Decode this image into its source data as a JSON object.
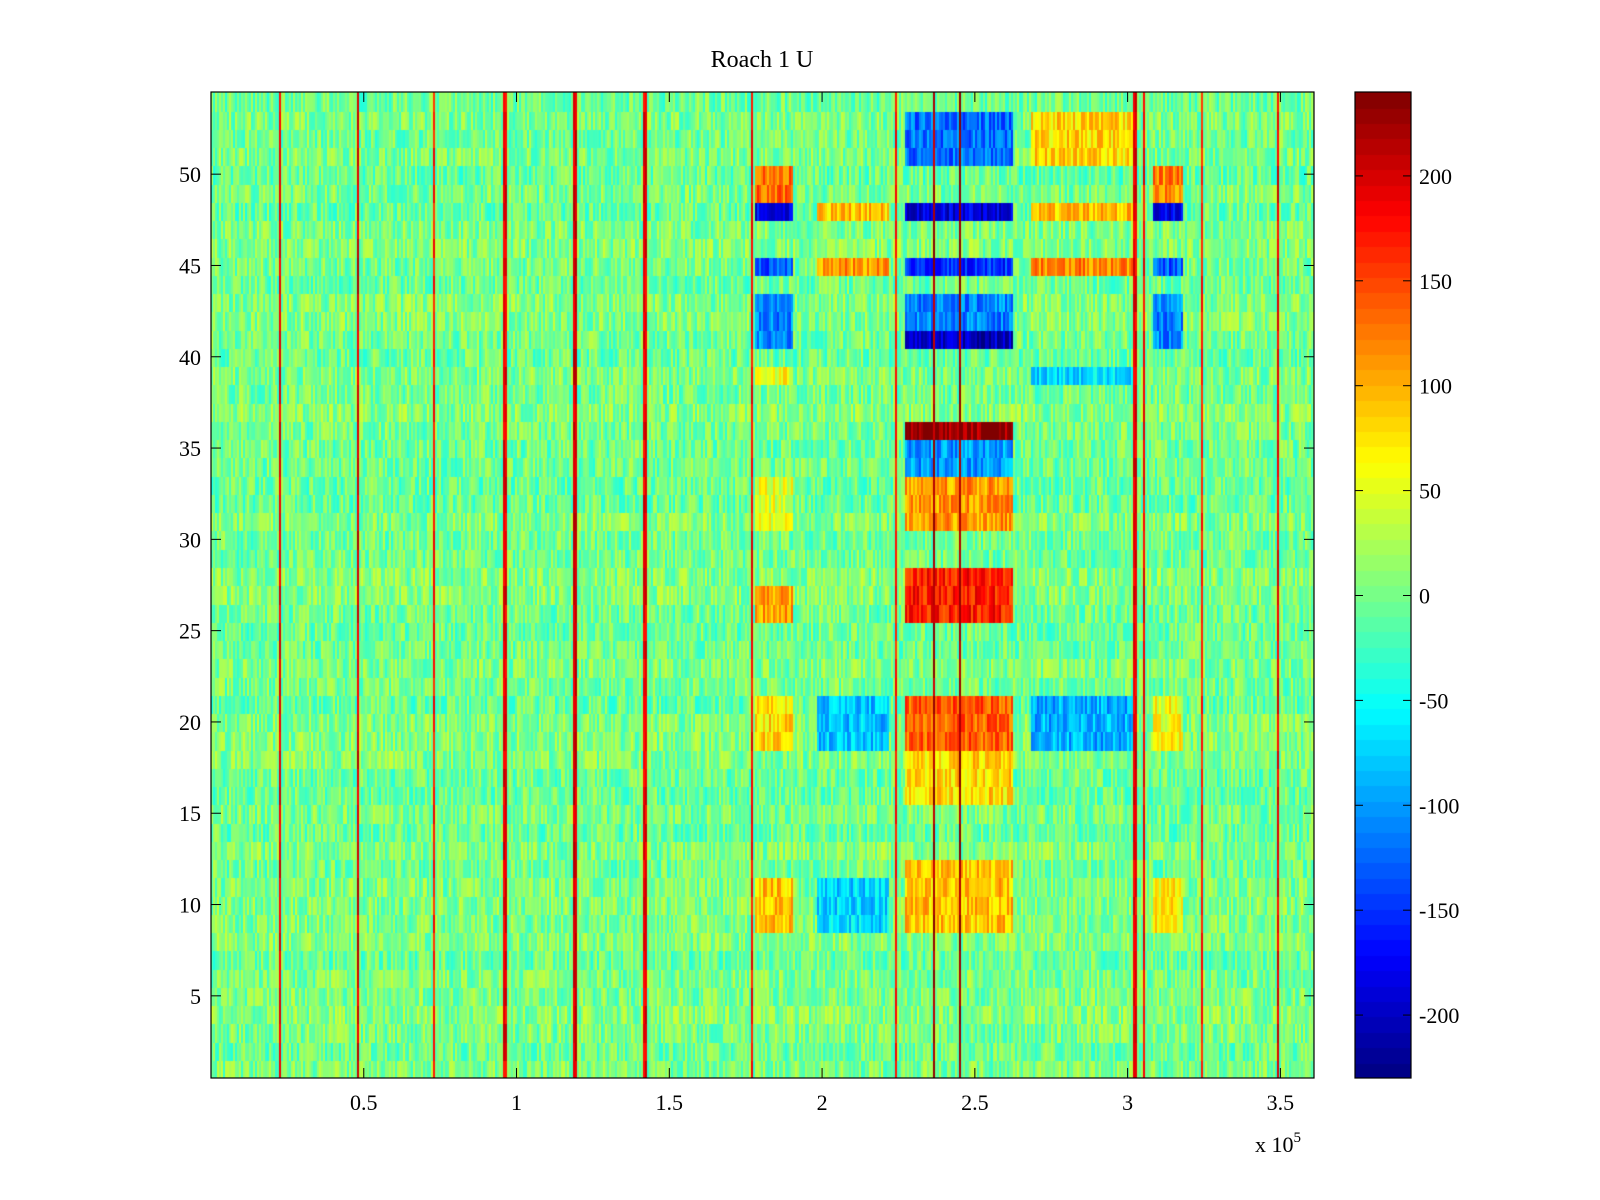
{
  "chart_data": {
    "type": "heatmap",
    "title": "Roach 1 U",
    "xlabel": "",
    "ylabel": "",
    "x_exponent_label": {
      "base": "x 10",
      "exponent": "5"
    },
    "xlim": [
      0,
      361000
    ],
    "ylim": [
      0.5,
      54.5
    ],
    "rows": 54,
    "x_ticks": [
      {
        "value": 50000,
        "label": "0.5"
      },
      {
        "value": 100000,
        "label": "1"
      },
      {
        "value": 150000,
        "label": "1.5"
      },
      {
        "value": 200000,
        "label": "2"
      },
      {
        "value": 250000,
        "label": "2.5"
      },
      {
        "value": 300000,
        "label": "3"
      },
      {
        "value": 350000,
        "label": "3.5"
      }
    ],
    "y_ticks": [
      {
        "value": 5,
        "label": "5"
      },
      {
        "value": 10,
        "label": "10"
      },
      {
        "value": 15,
        "label": "15"
      },
      {
        "value": 20,
        "label": "20"
      },
      {
        "value": 25,
        "label": "25"
      },
      {
        "value": 30,
        "label": "30"
      },
      {
        "value": 35,
        "label": "35"
      },
      {
        "value": 40,
        "label": "40"
      },
      {
        "value": 45,
        "label": "45"
      },
      {
        "value": 50,
        "label": "50"
      }
    ],
    "colorbar": {
      "colormap": "jet",
      "range": [
        -230,
        240
      ],
      "ticks": [
        {
          "value": 200,
          "label": "200"
        },
        {
          "value": 150,
          "label": "150"
        },
        {
          "value": 100,
          "label": "100"
        },
        {
          "value": 50,
          "label": "50"
        },
        {
          "value": 0,
          "label": "0"
        },
        {
          "value": -50,
          "label": "-50"
        },
        {
          "value": -100,
          "label": "-100"
        },
        {
          "value": -150,
          "label": "-150"
        },
        {
          "value": -200,
          "label": "-200"
        }
      ]
    },
    "baseline_value": 0,
    "noise_amplitude": 35,
    "vertical_lines": [
      {
        "x": 22500,
        "value": 190
      },
      {
        "x": 48000,
        "value": 200
      },
      {
        "x": 73000,
        "value": 170
      },
      {
        "x": 96000,
        "value": 190
      },
      {
        "x": 119000,
        "value": 200
      },
      {
        "x": 142000,
        "value": 190
      },
      {
        "x": 177000,
        "value": 180
      },
      {
        "x": 224000,
        "value": 170
      },
      {
        "x": 236500,
        "value": 220
      },
      {
        "x": 245000,
        "value": 230
      },
      {
        "x": 302000,
        "value": 190
      },
      {
        "x": 305000,
        "value": 180
      },
      {
        "x": 324000,
        "value": 170
      },
      {
        "x": 349000,
        "value": 190
      }
    ],
    "regions": [
      {
        "x": [
          178000,
          190000
        ],
        "rows": [
          49,
          50
        ],
        "value": 130
      },
      {
        "x": [
          178000,
          190000
        ],
        "rows": [
          48,
          48
        ],
        "value": -180
      },
      {
        "x": [
          178000,
          190000
        ],
        "rows": [
          45,
          45
        ],
        "value": -130
      },
      {
        "x": [
          178000,
          190000
        ],
        "rows": [
          41,
          43
        ],
        "value": -110
      },
      {
        "x": [
          178000,
          190000
        ],
        "rows": [
          39,
          39
        ],
        "value": 60
      },
      {
        "x": [
          178000,
          190000
        ],
        "rows": [
          31,
          33
        ],
        "value": 50
      },
      {
        "x": [
          178000,
          190000
        ],
        "rows": [
          26,
          27
        ],
        "value": 110
      },
      {
        "x": [
          178000,
          190000
        ],
        "rows": [
          19,
          21
        ],
        "value": 80
      },
      {
        "x": [
          178000,
          190000
        ],
        "rows": [
          9,
          11
        ],
        "value": 90
      },
      {
        "x": [
          198000,
          222000
        ],
        "rows": [
          48,
          48
        ],
        "value": 90
      },
      {
        "x": [
          198000,
          222000
        ],
        "rows": [
          45,
          45
        ],
        "value": 110
      },
      {
        "x": [
          198000,
          222000
        ],
        "rows": [
          19,
          21
        ],
        "value": -80
      },
      {
        "x": [
          198000,
          222000
        ],
        "rows": [
          9,
          11
        ],
        "value": -70
      },
      {
        "x": [
          227000,
          262000
        ],
        "rows": [
          51,
          53
        ],
        "value": -120
      },
      {
        "x": [
          227000,
          262000
        ],
        "rows": [
          48,
          48
        ],
        "value": -190
      },
      {
        "x": [
          227000,
          262000
        ],
        "rows": [
          45,
          45
        ],
        "value": -150
      },
      {
        "x": [
          227000,
          262000
        ],
        "rows": [
          41,
          41
        ],
        "value": -200
      },
      {
        "x": [
          227000,
          262000
        ],
        "rows": [
          42,
          43
        ],
        "value": -110
      },
      {
        "x": [
          227000,
          262000
        ],
        "rows": [
          36,
          36
        ],
        "value": 230
      },
      {
        "x": [
          227000,
          262000
        ],
        "rows": [
          34,
          35
        ],
        "value": -100
      },
      {
        "x": [
          227000,
          262000
        ],
        "rows": [
          31,
          33
        ],
        "value": 110
      },
      {
        "x": [
          227000,
          262000
        ],
        "rows": [
          26,
          28
        ],
        "value": 170
      },
      {
        "x": [
          227000,
          262000
        ],
        "rows": [
          19,
          21
        ],
        "value": 140
      },
      {
        "x": [
          227000,
          262000
        ],
        "rows": [
          16,
          18
        ],
        "value": 80
      },
      {
        "x": [
          227000,
          262000
        ],
        "rows": [
          9,
          12
        ],
        "value": 90
      },
      {
        "x": [
          268000,
          302000
        ],
        "rows": [
          51,
          53
        ],
        "value": 80
      },
      {
        "x": [
          268000,
          302000
        ],
        "rows": [
          48,
          48
        ],
        "value": 90
      },
      {
        "x": [
          268000,
          302000
        ],
        "rows": [
          45,
          45
        ],
        "value": 120
      },
      {
        "x": [
          268000,
          302000
        ],
        "rows": [
          39,
          39
        ],
        "value": -70
      },
      {
        "x": [
          268000,
          302000
        ],
        "rows": [
          19,
          21
        ],
        "value": -90
      },
      {
        "x": [
          308000,
          318000
        ],
        "rows": [
          49,
          50
        ],
        "value": 120
      },
      {
        "x": [
          308000,
          318000
        ],
        "rows": [
          48,
          48
        ],
        "value": -180
      },
      {
        "x": [
          308000,
          318000
        ],
        "rows": [
          45,
          45
        ],
        "value": -130
      },
      {
        "x": [
          308000,
          318000
        ],
        "rows": [
          41,
          43
        ],
        "value": -110
      },
      {
        "x": [
          308000,
          318000
        ],
        "rows": [
          19,
          21
        ],
        "value": 60
      },
      {
        "x": [
          308000,
          318000
        ],
        "rows": [
          9,
          11
        ],
        "value": 70
      }
    ]
  }
}
